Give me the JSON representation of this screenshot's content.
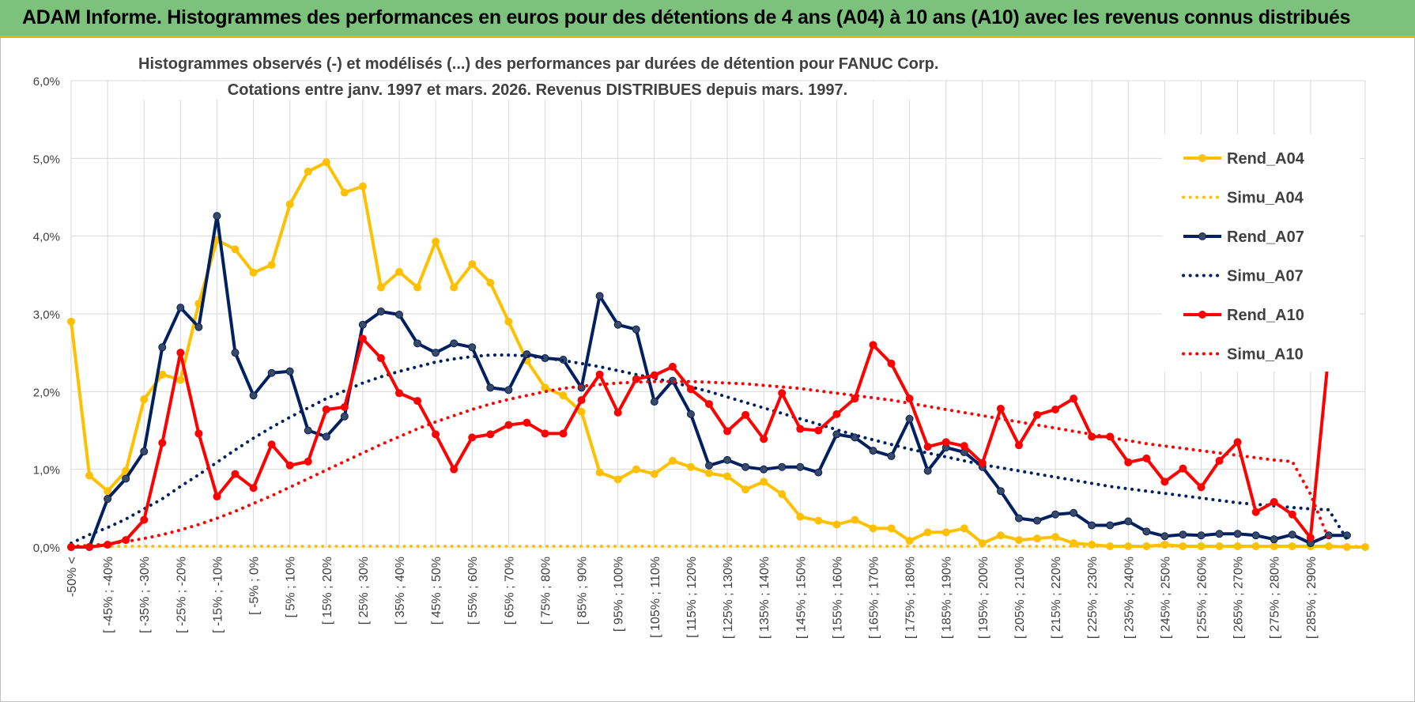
{
  "banner": {
    "title": "ADAM Informe. Histogrammes des performances en euros pour des détentions de 4 ans (A04) à 10 ans (A10) avec les revenus connus distribués"
  },
  "chart_data": {
    "type": "line",
    "title": "Histogrammes observés (-) et modélisés (...) des performances par durées de détention pour FANUC Corp.",
    "subtitle": "Cotations entre janv. 1997 et mars. 2026. Revenus DISTRIBUES depuis mars. 1997.",
    "ylim": [
      0,
      6
    ],
    "y_ticks": [
      "0,0%",
      "1,0%",
      "2,0%",
      "3,0%",
      "4,0%",
      "5,0%",
      "6,0%"
    ],
    "x_tick_labels": [
      "-50% <",
      "[ -45% ; -40%",
      "[ -35% ; -30%",
      "[ -25% ; -20%",
      "[ -15% ; -10%",
      "[ -5% ; 0%",
      "[ 5% ; 10%",
      "[ 15% ; 20%",
      "[ 25% ; 30%",
      "[ 35% ; 40%",
      "[ 45% ; 50%",
      "[ 55% ; 60%",
      "[ 65% ; 70%",
      "[ 75% ; 80%",
      "[ 85% ; 90%",
      "[ 95% ; 100%",
      "[ 105% ; 110%",
      "[ 115% ; 120%",
      "[ 125% ; 130%",
      "[ 135% ; 140%",
      "[ 145% ; 150%",
      "[ 155% ; 160%",
      "[ 165% ; 170%",
      "[ 175% ; 180%",
      "[ 185% ; 190%",
      "[ 195% ; 200%",
      "[ 205% ; 210%",
      "[ 215% ; 220%",
      "[ 225% ; 230%",
      "[ 235% ; 240%",
      "[ 245% ; 250%",
      "[ 255% ; 260%",
      "[ 265% ; 270%",
      "[ 275% ; 280%",
      "[ 285% ; 290%"
    ],
    "grid": true,
    "legend_position": "right",
    "colors": {
      "A04": "#ffc000",
      "A07": "#002060",
      "A10": "#ff0000",
      "grid": "#d9d9d9",
      "axis_text": "#404040"
    },
    "series": [
      {
        "name": "Rend_A04",
        "style": "solid",
        "color_key": "A04",
        "values": [
          2.9,
          0.92,
          0.72,
          0.98,
          1.9,
          2.22,
          2.15,
          3.13,
          3.95,
          3.83,
          3.53,
          3.63,
          4.41,
          4.83,
          4.95,
          4.56,
          4.64,
          3.34,
          3.54,
          3.34,
          3.93,
          3.34,
          3.64,
          3.4,
          2.9,
          2.4,
          2.05,
          1.95,
          1.74,
          0.96,
          0.87,
          1.0,
          0.94,
          1.11,
          1.03,
          0.95,
          0.91,
          0.74,
          0.84,
          0.68,
          0.39,
          0.34,
          0.29,
          0.35,
          0.24,
          0.24,
          0.08,
          0.19,
          0.19,
          0.24,
          0.05,
          0.15,
          0.09,
          0.11,
          0.13,
          0.05,
          0.03,
          0.01,
          0.01,
          0.01,
          0.03,
          0.01,
          0.01,
          0.01,
          0.01,
          0.01,
          0.01,
          0.01,
          0.01,
          0.01,
          0.0,
          0.0
        ]
      },
      {
        "name": "Simu_A04",
        "style": "dotted",
        "color_key": "A04",
        "values": [
          0.01,
          0.01,
          0.01,
          0.01,
          0.01,
          0.01,
          0.01,
          0.01,
          0.01,
          0.01,
          0.01,
          0.01,
          0.01,
          0.01,
          0.01,
          0.01,
          0.01,
          0.01,
          0.01,
          0.01,
          0.01,
          0.01,
          0.01,
          0.01,
          0.01,
          0.01,
          0.01,
          0.01,
          0.01,
          0.01,
          0.01,
          0.01,
          0.01,
          0.01,
          0.01,
          0.01,
          0.01,
          0.01,
          0.01,
          0.01,
          0.01,
          0.01,
          0.01,
          0.01,
          0.01,
          0.01,
          0.01,
          0.01,
          0.01,
          0.01,
          0.01,
          0.01,
          0.01,
          0.01,
          0.01,
          0.01,
          0.01,
          0.01,
          0.01,
          0.01,
          0.01,
          0.01,
          0.01,
          0.01,
          0.01,
          0.01,
          0.01,
          0.01,
          0.01,
          0.01,
          0.01,
          0.01
        ]
      },
      {
        "name": "Rend_A07",
        "style": "solid",
        "color_key": "A07",
        "values": [
          0.0,
          0.0,
          0.62,
          0.88,
          1.23,
          2.57,
          3.08,
          2.83,
          4.26,
          2.5,
          1.95,
          2.24,
          2.26,
          1.5,
          1.42,
          1.68,
          2.86,
          3.03,
          2.99,
          2.62,
          2.5,
          2.62,
          2.57,
          2.05,
          2.02,
          2.48,
          2.43,
          2.41,
          2.05,
          3.23,
          2.86,
          2.8,
          1.87,
          2.14,
          1.71,
          1.05,
          1.12,
          1.03,
          1.0,
          1.03,
          1.03,
          0.96,
          1.45,
          1.41,
          1.24,
          1.17,
          1.65,
          0.98,
          1.28,
          1.22,
          1.03,
          0.72,
          0.37,
          0.34,
          0.42,
          0.44,
          0.28,
          0.28,
          0.33,
          0.2,
          0.14,
          0.16,
          0.15,
          0.17,
          0.17,
          0.15,
          0.1,
          0.16,
          0.05,
          0.15,
          0.15
        ]
      },
      {
        "name": "Simu_A07",
        "style": "dotted",
        "color_key": "A07",
        "values": [
          0.05,
          0.16,
          0.25,
          0.36,
          0.49,
          0.62,
          0.78,
          0.93,
          1.09,
          1.25,
          1.4,
          1.54,
          1.67,
          1.79,
          1.91,
          2.01,
          2.11,
          2.19,
          2.26,
          2.32,
          2.38,
          2.42,
          2.45,
          2.47,
          2.47,
          2.46,
          2.43,
          2.4,
          2.36,
          2.32,
          2.27,
          2.22,
          2.17,
          2.12,
          2.06,
          2.0,
          1.93,
          1.86,
          1.79,
          1.72,
          1.65,
          1.58,
          1.51,
          1.44,
          1.38,
          1.32,
          1.26,
          1.21,
          1.16,
          1.11,
          1.06,
          1.02,
          0.98,
          0.94,
          0.9,
          0.86,
          0.82,
          0.78,
          0.75,
          0.72,
          0.69,
          0.66,
          0.63,
          0.6,
          0.57,
          0.55,
          0.53,
          0.51,
          0.49,
          0.48,
          0.1
        ]
      },
      {
        "name": "Rend_A10",
        "style": "solid",
        "color_key": "A10",
        "values": [
          0.0,
          0.0,
          0.03,
          0.09,
          0.35,
          1.34,
          2.5,
          1.46,
          0.65,
          0.94,
          0.76,
          1.32,
          1.05,
          1.1,
          1.77,
          1.8,
          2.68,
          2.43,
          1.98,
          1.88,
          1.45,
          1.0,
          1.41,
          1.45,
          1.57,
          1.6,
          1.46,
          1.46,
          1.89,
          2.22,
          1.73,
          2.16,
          2.21,
          2.32,
          2.03,
          1.84,
          1.49,
          1.7,
          1.39,
          1.98,
          1.52,
          1.5,
          1.71,
          1.91,
          2.6,
          2.36,
          1.91,
          1.29,
          1.35,
          1.3,
          1.08,
          1.78,
          1.31,
          1.7,
          1.77,
          1.91,
          1.42,
          1.42,
          1.09,
          1.14,
          0.84,
          1.01,
          0.77,
          1.11,
          1.35,
          0.45,
          0.58,
          0.42,
          0.12,
          2.5
        ]
      },
      {
        "name": "Simu_A10",
        "style": "dotted",
        "color_key": "A10",
        "values": [
          0.01,
          0.02,
          0.04,
          0.07,
          0.11,
          0.16,
          0.22,
          0.29,
          0.37,
          0.46,
          0.56,
          0.66,
          0.77,
          0.88,
          0.99,
          1.1,
          1.21,
          1.32,
          1.42,
          1.52,
          1.61,
          1.69,
          1.77,
          1.84,
          1.9,
          1.95,
          2.0,
          2.04,
          2.07,
          2.09,
          2.11,
          2.12,
          2.13,
          2.13,
          2.13,
          2.12,
          2.11,
          2.1,
          2.08,
          2.06,
          2.04,
          2.01,
          1.98,
          1.95,
          1.92,
          1.89,
          1.85,
          1.81,
          1.77,
          1.73,
          1.69,
          1.65,
          1.61,
          1.57,
          1.53,
          1.49,
          1.45,
          1.41,
          1.37,
          1.33,
          1.3,
          1.27,
          1.24,
          1.21,
          1.18,
          1.15,
          1.12,
          1.1,
          0.68,
          0.1
        ]
      }
    ]
  }
}
